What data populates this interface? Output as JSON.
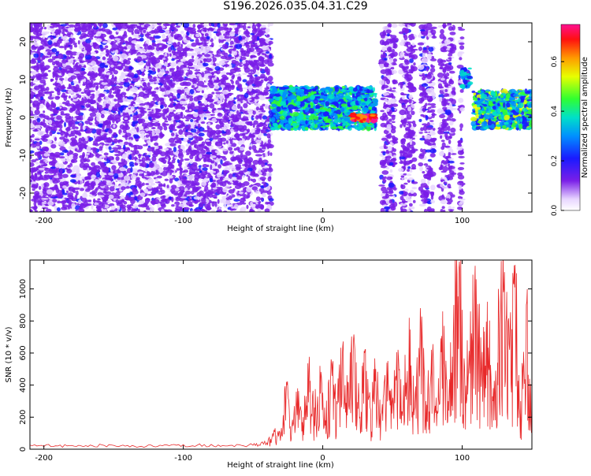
{
  "title": "S196.2026.035.04.31.C29",
  "chart_data": [
    {
      "type": "heatmap",
      "title": "S196.2026.035.04.31.C29",
      "xlabel": "Height of straight line (km)",
      "ylabel": "Frequency (Hz)",
      "xlim": [
        -210,
        150
      ],
      "ylim": [
        -25,
        25
      ],
      "xticks": [
        -200,
        -100,
        0,
        100
      ],
      "yticks": [
        20,
        10,
        0,
        -10,
        -20
      ],
      "colorbar": {
        "label": "Normalized spectral amplitude",
        "range": [
          0,
          0.75
        ],
        "ticks": [
          "0.0",
          "0.2",
          "0.4",
          "0.6"
        ]
      },
      "regions": [
        {
          "x_range": [
            -210,
            -37
          ],
          "freq_range": [
            -25,
            25
          ],
          "level": "noise",
          "amplitude": 0.08
        },
        {
          "x_range": [
            -37,
            38
          ],
          "freq_range": [
            -3,
            8
          ],
          "level": "signal",
          "amplitude": 0.35
        },
        {
          "x_range": [
            20,
            38
          ],
          "freq_range": [
            -1,
            1
          ],
          "level": "peak",
          "amplitude": 0.72
        },
        {
          "x_range": [
            40,
            100
          ],
          "freq_range": [
            -25,
            25
          ],
          "level": "noise-columns",
          "amplitude": 0.08
        },
        {
          "x_range": [
            100,
            106
          ],
          "freq_range": [
            8,
            13
          ],
          "level": "signal",
          "amplitude": 0.3
        },
        {
          "x_range": [
            108,
            150
          ],
          "freq_range": [
            -3,
            7
          ],
          "level": "signal",
          "amplitude": 0.4
        }
      ]
    },
    {
      "type": "line",
      "xlabel": "Height of straight line (km)",
      "ylabel": "SNR (10 * v/v)",
      "xlim": [
        -210,
        150
      ],
      "ylim": [
        0,
        1180
      ],
      "xticks": [
        -200,
        -100,
        0,
        100
      ],
      "yticks": [
        0,
        200,
        400,
        600,
        800,
        1000
      ],
      "color": "#e8292a",
      "series": [
        {
          "x": [
            -210,
            -190,
            -170,
            -150,
            -130,
            -110,
            -90,
            -70,
            -50,
            -40,
            -35,
            -30,
            -26,
            -22,
            -18,
            -14,
            -10,
            -6,
            -2,
            2,
            6,
            10,
            14,
            18,
            22,
            26,
            30,
            34,
            38,
            42,
            46,
            50,
            54,
            58,
            62,
            66,
            70,
            74,
            78,
            82,
            86,
            90,
            94,
            98,
            102,
            106,
            110,
            114,
            118,
            122,
            126,
            130,
            134,
            138,
            142,
            146,
            150
          ],
          "y": [
            25,
            20,
            22,
            24,
            18,
            22,
            25,
            20,
            25,
            40,
            120,
            90,
            420,
            160,
            380,
            200,
            480,
            260,
            520,
            180,
            560,
            300,
            580,
            420,
            680,
            320,
            600,
            260,
            500,
            220,
            540,
            300,
            620,
            400,
            820,
            260,
            880,
            300,
            620,
            240,
            860,
            300,
            900,
            1170,
            380,
            860,
            1060,
            500,
            920,
            300,
            1000,
            1000,
            620,
            1150,
            300,
            900,
            420
          ]
        }
      ]
    }
  ]
}
